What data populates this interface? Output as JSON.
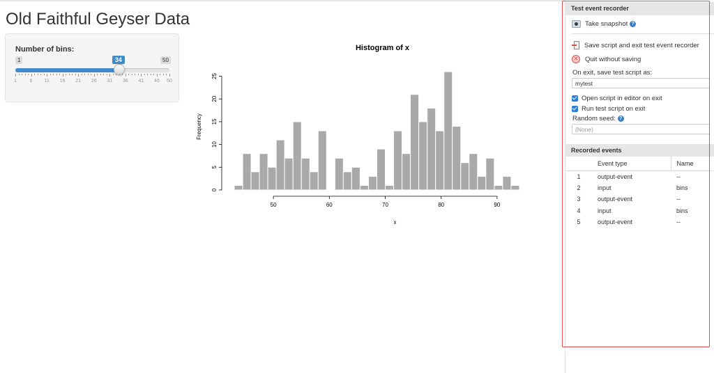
{
  "app": {
    "title": "Old Faithful Geyser Data"
  },
  "slider": {
    "label": "Number of bins:",
    "min": 1,
    "max": 50,
    "value": 34,
    "min_label": "1",
    "max_label": "50",
    "value_label": "34",
    "tick_labels": [
      "1",
      "6",
      "11",
      "16",
      "21",
      "26",
      "31",
      "36",
      "41",
      "46",
      "50"
    ],
    "accent_color": "#428bca"
  },
  "chart_data": {
    "type": "bar",
    "title": "Histogram of x",
    "xlabel": "x",
    "ylabel": "Frequency",
    "bin_start": 43,
    "bin_width": 1.5,
    "values": [
      1,
      8,
      4,
      8,
      5,
      11,
      7,
      15,
      7,
      4,
      13,
      0,
      7,
      4,
      5,
      1,
      3,
      9,
      1,
      13,
      8,
      21,
      15,
      18,
      13,
      26,
      14,
      6,
      8,
      3,
      7,
      1,
      3,
      1
    ],
    "xlim": [
      43,
      96
    ],
    "ylim": [
      0,
      26
    ],
    "x_ticks": [
      50,
      60,
      70,
      80,
      90
    ],
    "y_ticks": [
      0,
      5,
      10,
      15,
      20,
      25
    ],
    "bar_color": "#a9a9a9",
    "grid": false
  },
  "recorder": {
    "header": "Test event recorder",
    "snapshot_label": "Take snapshot",
    "save_exit_label": "Save script and exit test event recorder",
    "quit_label": "Quit without saving",
    "script_name_label": "On exit, save test script as:",
    "script_name_value": "mytest",
    "open_editor_label": "Open script in editor on exit",
    "run_script_label": "Run test script on exit",
    "seed_label": "Random seed:",
    "seed_placeholder": "(None)"
  },
  "events": {
    "header": "Recorded events",
    "columns": {
      "num": "",
      "type": "Event type",
      "name": "Name"
    },
    "rows": [
      {
        "num": "1",
        "type": "output-event",
        "name": "--"
      },
      {
        "num": "2",
        "type": "input",
        "name": "bins"
      },
      {
        "num": "3",
        "type": "output-event",
        "name": "--"
      },
      {
        "num": "4",
        "type": "input",
        "name": "bins"
      },
      {
        "num": "5",
        "type": "output-event",
        "name": "--"
      }
    ]
  }
}
